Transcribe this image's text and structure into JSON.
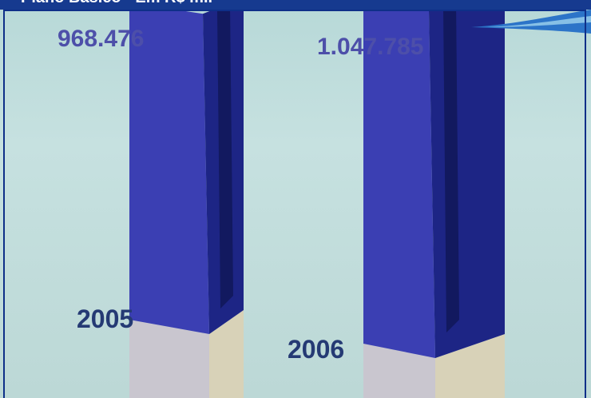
{
  "header": {
    "title": "Plano Básico - Em R$ mil"
  },
  "chart_data": {
    "type": "bar",
    "title": "Plano Básico - Em R$ mil",
    "categories": [
      "2005",
      "2006"
    ],
    "values": [
      968476,
      1047785
    ],
    "value_labels": [
      "968.476",
      "1.047.785"
    ],
    "ylim": [
      0,
      1100000
    ],
    "grid": false,
    "legend": "none",
    "colors": {
      "bar_front": "#3b3fb3",
      "bar_side": "#1d2585",
      "bar_top": "#4a4dc4",
      "base": "#c9c6cf",
      "background": "#c3dfde",
      "header": "#163a8f"
    }
  }
}
